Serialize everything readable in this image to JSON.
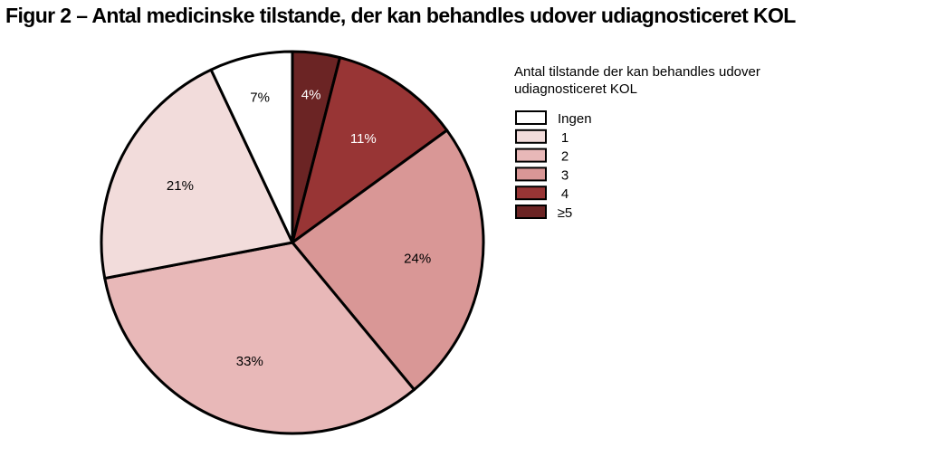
{
  "chart_data": {
    "type": "pie",
    "title": "Figur 2 – Antal medicinske tilstande, der kan behandles udover udiagnosticeret KOL",
    "legend_title": [
      "Antal tilstande der kan behandles udover",
      "udiagnosticeret KOL"
    ],
    "legend_position": "top-right",
    "slices": [
      {
        "category": "≥5",
        "value": 4,
        "label": "4%",
        "color": "#6b2424"
      },
      {
        "category": "4",
        "value": 11,
        "label": "11%",
        "color": "#983535"
      },
      {
        "category": "3",
        "value": 24,
        "label": "24%",
        "color": "#d99796"
      },
      {
        "category": "2",
        "value": 33,
        "label": "33%",
        "color": "#e8b8b8"
      },
      {
        "category": "1",
        "value": 21,
        "label": "21%",
        "color": "#f2dcdb"
      },
      {
        "category": "Ingen",
        "value": 7,
        "label": "7%",
        "color": "#ffffff"
      }
    ],
    "legend_order": [
      "Ingen",
      "1",
      "2",
      "3",
      "4",
      "≥5"
    ],
    "label_colors": {
      "dark": "#ffffff",
      "light": "#000000"
    }
  }
}
